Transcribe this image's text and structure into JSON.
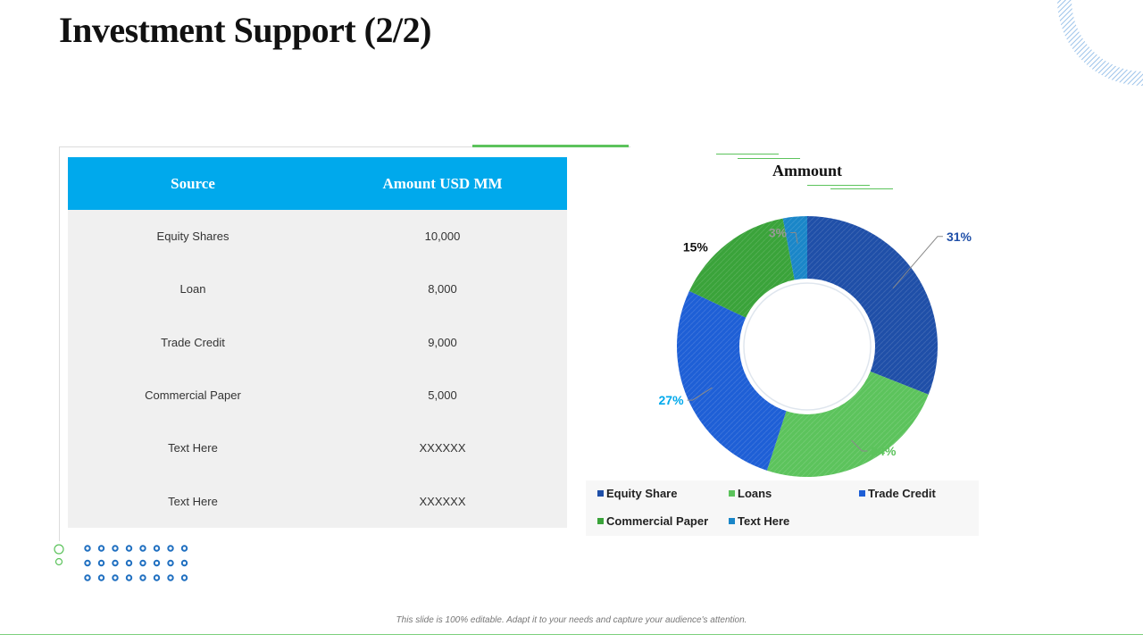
{
  "title": "Investment Support (2/2)",
  "table": {
    "headers": [
      "Source",
      "Amount  USD MM"
    ],
    "rows": [
      [
        "Equity Shares",
        "10,000"
      ],
      [
        "Loan",
        "8,000"
      ],
      [
        "Trade  Credit",
        "9,000"
      ],
      [
        "Commercial Paper",
        "5,000"
      ],
      [
        "Text Here",
        "XXXXXX"
      ],
      [
        "Text Here",
        "XXXXXX"
      ]
    ]
  },
  "chart_data": {
    "type": "pie",
    "title": "Ammount",
    "categories": [
      "Equity Share",
      "Loans",
      "Trade Credit",
      "Commercial Paper",
      "Text Here"
    ],
    "values": [
      31,
      24,
      27,
      15,
      3
    ],
    "labels": [
      "31%",
      "24%",
      "27%",
      "15%",
      "3%"
    ],
    "colors": [
      "#1f4fa8",
      "#5cc35c",
      "#1e5fd6",
      "#3aa33a",
      "#1a86c8"
    ],
    "label_colors": [
      "#1f4fa8",
      "#5cc35c",
      "#00a9ec",
      "#111111",
      "#999999"
    ],
    "donut": true,
    "legend_position": "bottom"
  },
  "footer": "This slide is 100% editable. Adapt it to your needs and capture your audience's attention."
}
